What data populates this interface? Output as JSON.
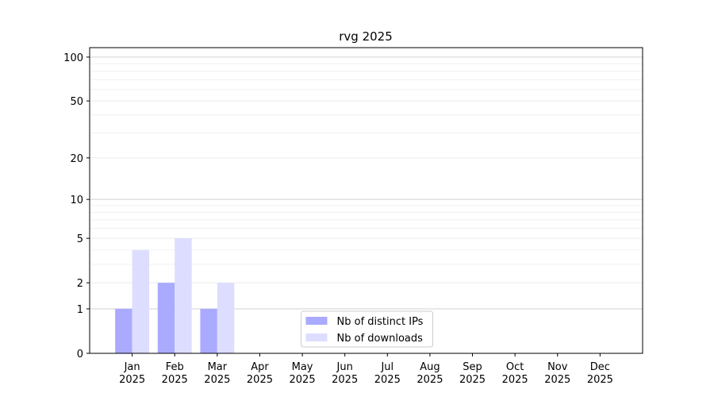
{
  "chart_data": {
    "type": "bar",
    "title": "rvg 2025",
    "categories": [
      "Jan 2025",
      "Feb 2025",
      "Mar 2025",
      "Apr 2025",
      "May 2025",
      "Jun 2025",
      "Jul 2025",
      "Aug 2025",
      "Sep 2025",
      "Oct 2025",
      "Nov 2025",
      "Dec 2025"
    ],
    "series": [
      {
        "name": "Nb of distinct IPs",
        "color": "#aaaaff",
        "values": [
          1,
          2,
          1,
          0,
          0,
          0,
          0,
          0,
          0,
          0,
          0,
          0
        ]
      },
      {
        "name": "Nb of downloads",
        "color": "#ddddff",
        "values": [
          4,
          5,
          2,
          0,
          0,
          0,
          0,
          0,
          0,
          0,
          0,
          0
        ]
      }
    ],
    "yscale": "log1p",
    "ylim": [
      0,
      116
    ],
    "yticks": [
      0,
      1,
      2,
      5,
      10,
      20,
      50,
      100
    ],
    "yminorticks": [
      3,
      4,
      6,
      7,
      8,
      9,
      30,
      40,
      60,
      70,
      80,
      90
    ],
    "grid": true,
    "legend": "lower center"
  }
}
